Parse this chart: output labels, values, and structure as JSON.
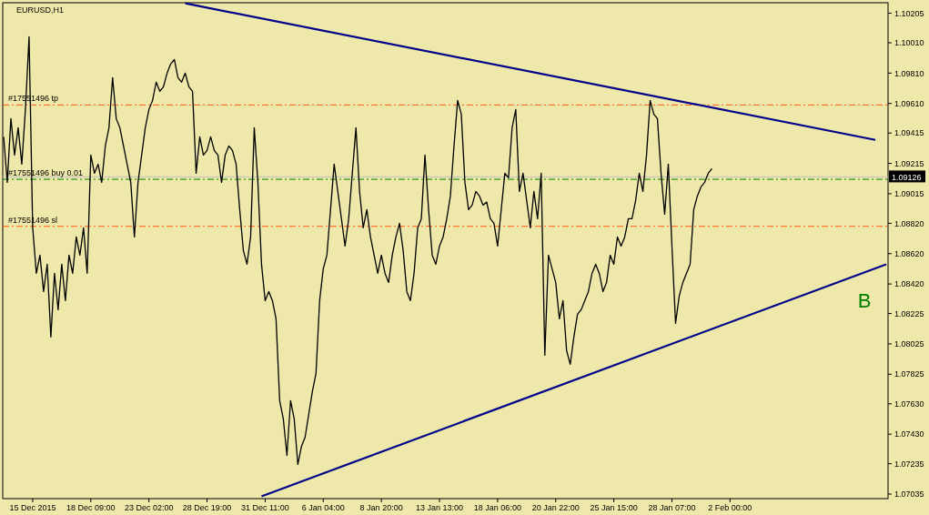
{
  "chart_data": {
    "type": "line",
    "title": "EURUSD,H1",
    "categories": [
      null,
      null,
      null,
      null,
      null,
      null,
      null,
      null,
      "15 Dec 2015",
      null,
      null,
      null,
      null,
      null,
      null,
      null,
      null,
      null,
      null,
      null,
      null,
      null,
      null,
      null,
      "18 Dec 09:00",
      null,
      null,
      null,
      null,
      null,
      null,
      null,
      null,
      null,
      null,
      null,
      null,
      null,
      null,
      null,
      "23 Dec 02:00",
      null,
      null,
      null,
      null,
      null,
      null,
      null,
      null,
      null,
      null,
      null,
      null,
      null,
      null,
      null,
      "28 Dec 19:00",
      null,
      null,
      null,
      null,
      null,
      null,
      null,
      null,
      null,
      null,
      null,
      null,
      null,
      null,
      null,
      "31 Dec 11:00",
      null,
      null,
      null,
      null,
      null,
      null,
      null,
      null,
      null,
      null,
      null,
      null,
      null,
      null,
      null,
      "6 Jan 04:00",
      null,
      null,
      null,
      null,
      null,
      null,
      null,
      null,
      null,
      null,
      null,
      null,
      null,
      null,
      null,
      "8 Jan 20:00",
      null,
      null,
      null,
      null,
      null,
      null,
      null,
      null,
      null,
      null,
      null,
      null,
      null,
      null,
      null,
      "13 Jan 13:00",
      null,
      null,
      null,
      null,
      null,
      null,
      null,
      null,
      null,
      null,
      null,
      null,
      null,
      null,
      null,
      "18 Jan 06:00",
      null,
      null,
      null,
      null,
      null,
      null,
      null,
      null,
      null,
      null,
      null,
      null,
      null,
      null,
      null,
      "20 Jan 22:00",
      null,
      null,
      null,
      null,
      null,
      null,
      null,
      null,
      null,
      null,
      null,
      null,
      null,
      null,
      null,
      "25 Jan 15:00",
      null,
      null,
      null,
      null,
      null,
      null,
      null,
      null,
      null,
      null,
      null,
      null,
      null,
      null,
      null,
      "28 Jan 07:00",
      null,
      null,
      null,
      null,
      null,
      null,
      null,
      null,
      null,
      null,
      null,
      null,
      null,
      null,
      null,
      "2 Feb 00:00",
      null,
      null,
      null,
      null,
      null,
      null,
      null,
      null,
      null,
      null,
      null,
      null,
      null,
      null,
      null,
      null,
      null,
      null,
      null,
      null,
      null,
      null,
      null,
      null,
      null,
      null,
      null,
      null,
      null,
      null,
      null,
      null,
      null,
      null,
      null,
      null,
      null,
      null,
      null,
      null,
      null,
      null,
      null
    ],
    "ylim": [
      1.07005,
      1.10274
    ],
    "yticks": [
      {
        "value": 1.10205,
        "label": "1.10205"
      },
      {
        "value": 1.1001,
        "label": "1.10010"
      },
      {
        "value": 1.0981,
        "label": "1.09810"
      },
      {
        "value": 1.0961,
        "label": "1.09610"
      },
      {
        "value": 1.09415,
        "label": "1.09415"
      },
      {
        "value": 1.09215,
        "label": "1.09215"
      },
      {
        "value": 1.09015,
        "label": "1.09015"
      },
      {
        "value": 1.0882,
        "label": "1.08820"
      },
      {
        "value": 1.0862,
        "label": "1.08620"
      },
      {
        "value": 1.0842,
        "label": "1.08420"
      },
      {
        "value": 1.08225,
        "label": "1.08225"
      },
      {
        "value": 1.08025,
        "label": "1.08025"
      },
      {
        "value": 1.07825,
        "label": "1.07825"
      },
      {
        "value": 1.0763,
        "label": "1.07630"
      },
      {
        "value": 1.0743,
        "label": "1.07430"
      },
      {
        "value": 1.07235,
        "label": "1.07235"
      },
      {
        "value": 1.07035,
        "label": "1.07035"
      }
    ],
    "series": [
      {
        "color": "#000000",
        "values": [
          1.0939,
          1.0909,
          1.0951,
          1.0927,
          1.0945,
          1.0921,
          1.0957,
          1.1005,
          1.0879,
          1.0849,
          1.0861,
          1.0837,
          1.0855,
          1.0807,
          1.0849,
          1.0825,
          1.0855,
          1.0831,
          1.0861,
          1.0849,
          1.0873,
          1.0861,
          1.0879,
          1.0849,
          1.0927,
          1.0915,
          1.0921,
          1.0909,
          1.0933,
          1.0945,
          1.0978,
          1.0951,
          1.0945,
          1.0933,
          1.0921,
          1.0909,
          1.0873,
          1.0909,
          1.0927,
          1.0945,
          1.0957,
          1.0963,
          1.0975,
          1.0969,
          1.0972,
          1.0981,
          1.0987,
          1.099,
          1.0978,
          1.0975,
          1.0981,
          1.0972,
          1.0969,
          1.0915,
          1.0939,
          1.0927,
          1.093,
          1.0939,
          1.093,
          1.0927,
          1.0909,
          1.0927,
          1.0933,
          1.093,
          1.0921,
          1.0891,
          1.0864,
          1.0855,
          1.0873,
          1.0945,
          1.0909,
          1.0855,
          1.0831,
          1.0837,
          1.0831,
          1.0819,
          1.0765,
          1.0753,
          1.0729,
          1.0765,
          1.0753,
          1.0723,
          1.0735,
          1.0741,
          1.0756,
          1.0771,
          1.0783,
          1.0831,
          1.0852,
          1.0861,
          1.0891,
          1.0921,
          1.0903,
          1.0885,
          1.0867,
          1.0885,
          1.0915,
          1.0945,
          1.0903,
          1.0879,
          1.0891,
          1.0873,
          1.0861,
          1.0849,
          1.0861,
          1.0849,
          1.0843,
          1.0861,
          1.0873,
          1.0882,
          1.0864,
          1.0837,
          1.0831,
          1.0849,
          1.0879,
          1.0885,
          1.0927,
          1.0891,
          1.0861,
          1.0855,
          1.0867,
          1.0873,
          1.0885,
          1.09,
          1.0933,
          1.0963,
          1.0954,
          1.0909,
          1.0891,
          1.0894,
          1.0903,
          1.09,
          1.0894,
          1.0896,
          1.0885,
          1.0882,
          1.0867,
          1.0891,
          1.0915,
          1.0912,
          1.0945,
          1.0957,
          1.0903,
          1.0915,
          1.0897,
          1.0879,
          1.0903,
          1.0885,
          1.0915,
          1.0795,
          1.0861,
          1.0852,
          1.0843,
          1.0819,
          1.0831,
          1.0798,
          1.0789,
          1.0807,
          1.0822,
          1.0825,
          1.0831,
          1.0837,
          1.0849,
          1.0855,
          1.0849,
          1.0837,
          1.0843,
          1.0861,
          1.0855,
          1.0873,
          1.0867,
          1.0873,
          1.0885,
          1.0885,
          1.0897,
          1.0915,
          1.0903,
          1.0927,
          1.0963,
          1.0954,
          1.0951,
          1.0915,
          1.0888,
          1.0921,
          1.0867,
          1.0816,
          1.0834,
          1.0843,
          1.0849,
          1.0855,
          1.0891,
          1.09,
          1.0906,
          1.0909,
          1.0915,
          1.0918,
          null,
          null,
          null,
          null,
          null,
          null,
          null,
          null,
          null,
          null,
          null,
          null,
          null,
          null,
          null,
          null,
          null,
          null,
          null,
          null,
          null,
          null,
          null,
          null,
          null,
          null,
          null,
          null,
          null,
          null,
          null,
          null,
          null,
          null,
          null,
          null,
          null,
          null,
          null,
          null,
          null,
          null,
          null,
          null,
          null,
          null,
          null,
          null
        ]
      },
      {
        "color": "#00008b",
        "values": [
          null,
          null,
          null,
          null,
          null,
          null,
          null,
          null,
          null,
          null,
          null,
          null,
          null,
          null,
          null,
          null,
          null,
          null,
          null,
          null,
          null,
          null,
          null,
          null,
          null,
          null,
          null,
          null,
          null,
          null,
          null,
          null,
          null,
          null,
          null,
          null,
          null,
          null,
          null,
          null,
          null,
          null,
          null,
          null,
          null,
          null,
          null,
          null,
          null,
          null,
          1.1027,
          null,
          null,
          null,
          null,
          null,
          null,
          null,
          null,
          null,
          null,
          null,
          null,
          null,
          null,
          null,
          null,
          null,
          null,
          null,
          null,
          null,
          null,
          null,
          null,
          null,
          null,
          null,
          null,
          null,
          null,
          null,
          null,
          null,
          null,
          null,
          null,
          null,
          null,
          null,
          null,
          null,
          null,
          null,
          null,
          null,
          null,
          null,
          null,
          null,
          null,
          null,
          null,
          null,
          null,
          null,
          null,
          null,
          null,
          null,
          null,
          null,
          null,
          null,
          null,
          null,
          null,
          null,
          null,
          null,
          null,
          null,
          null,
          null,
          null,
          null,
          null,
          null,
          null,
          null,
          null,
          null,
          null,
          null,
          null,
          null,
          null,
          null,
          null,
          null,
          null,
          null,
          null,
          null,
          null,
          null,
          null,
          null,
          null,
          null,
          null,
          null,
          null,
          null,
          null,
          null,
          null,
          null,
          null,
          null,
          null,
          null,
          null,
          null,
          null,
          null,
          null,
          null,
          null,
          null,
          null,
          null,
          null,
          null,
          null,
          null,
          null,
          null,
          null,
          null,
          null,
          null,
          null,
          null,
          null,
          null,
          null,
          null,
          null,
          null,
          null,
          null,
          null,
          null,
          null,
          null,
          null,
          null,
          null,
          null,
          null,
          null,
          null,
          null,
          null,
          null,
          null,
          null,
          null,
          null,
          null,
          null,
          null,
          null,
          null,
          null,
          null,
          null,
          null,
          null,
          null,
          null,
          null,
          null,
          null,
          null,
          null,
          null,
          null,
          null,
          null,
          null,
          null,
          null,
          null,
          null,
          null,
          null,
          null,
          null,
          1.0937,
          null,
          null,
          null
        ]
      },
      {
        "color": "#00008b",
        "values": [
          null,
          null,
          null,
          null,
          null,
          null,
          null,
          null,
          null,
          null,
          null,
          null,
          null,
          null,
          null,
          null,
          null,
          null,
          null,
          null,
          null,
          null,
          null,
          null,
          null,
          null,
          null,
          null,
          null,
          null,
          null,
          null,
          null,
          null,
          null,
          null,
          null,
          null,
          null,
          null,
          null,
          null,
          null,
          null,
          null,
          null,
          null,
          null,
          null,
          null,
          null,
          null,
          null,
          null,
          null,
          null,
          null,
          null,
          null,
          null,
          null,
          null,
          null,
          null,
          null,
          null,
          null,
          null,
          null,
          null,
          null,
          1.0702,
          null,
          null,
          null,
          null,
          null,
          null,
          null,
          null,
          null,
          null,
          null,
          null,
          null,
          null,
          null,
          null,
          null,
          null,
          null,
          null,
          null,
          null,
          null,
          null,
          null,
          null,
          null,
          null,
          null,
          null,
          null,
          null,
          null,
          null,
          null,
          null,
          null,
          null,
          null,
          null,
          null,
          null,
          null,
          null,
          null,
          null,
          null,
          null,
          null,
          null,
          null,
          null,
          null,
          null,
          null,
          null,
          null,
          null,
          null,
          null,
          null,
          null,
          null,
          null,
          null,
          null,
          null,
          null,
          null,
          null,
          null,
          null,
          null,
          null,
          null,
          null,
          null,
          null,
          null,
          null,
          null,
          null,
          null,
          null,
          null,
          null,
          null,
          null,
          null,
          null,
          null,
          null,
          null,
          null,
          null,
          null,
          null,
          null,
          null,
          null,
          null,
          null,
          null,
          null,
          null,
          null,
          null,
          null,
          null,
          null,
          null,
          null,
          null,
          null,
          null,
          null,
          null,
          null,
          null,
          null,
          null,
          null,
          null,
          null,
          null,
          null,
          null,
          null,
          null,
          null,
          null,
          null,
          null,
          null,
          null,
          null,
          null,
          null,
          null,
          null,
          null,
          null,
          null,
          null,
          null,
          null,
          null,
          null,
          null,
          null,
          null,
          null,
          null,
          null,
          null,
          null,
          null,
          null,
          null,
          null,
          null,
          null,
          null,
          null,
          null,
          null,
          null,
          null,
          null,
          null,
          null,
          1.0855
        ]
      }
    ],
    "ref_lines": [
      {
        "axis": "y",
        "value": 1.096,
        "label": "#17551496 tp",
        "color": "#ff5a14",
        "line_style": "dashed"
      },
      {
        "axis": "y",
        "value": 1.09126,
        "label": "1.09126",
        "color": "#c0c0c0",
        "line_style": "solid"
      },
      {
        "axis": "y",
        "value": 1.0911,
        "label": "#17551496 buy 0.01",
        "color": "#008000",
        "line_style": "dashed"
      },
      {
        "axis": "y",
        "value": 1.088,
        "label": "#17551496 sl",
        "color": "#ff5a14",
        "line_style": "dashed"
      }
    ],
    "annotations": [
      "B"
    ]
  }
}
